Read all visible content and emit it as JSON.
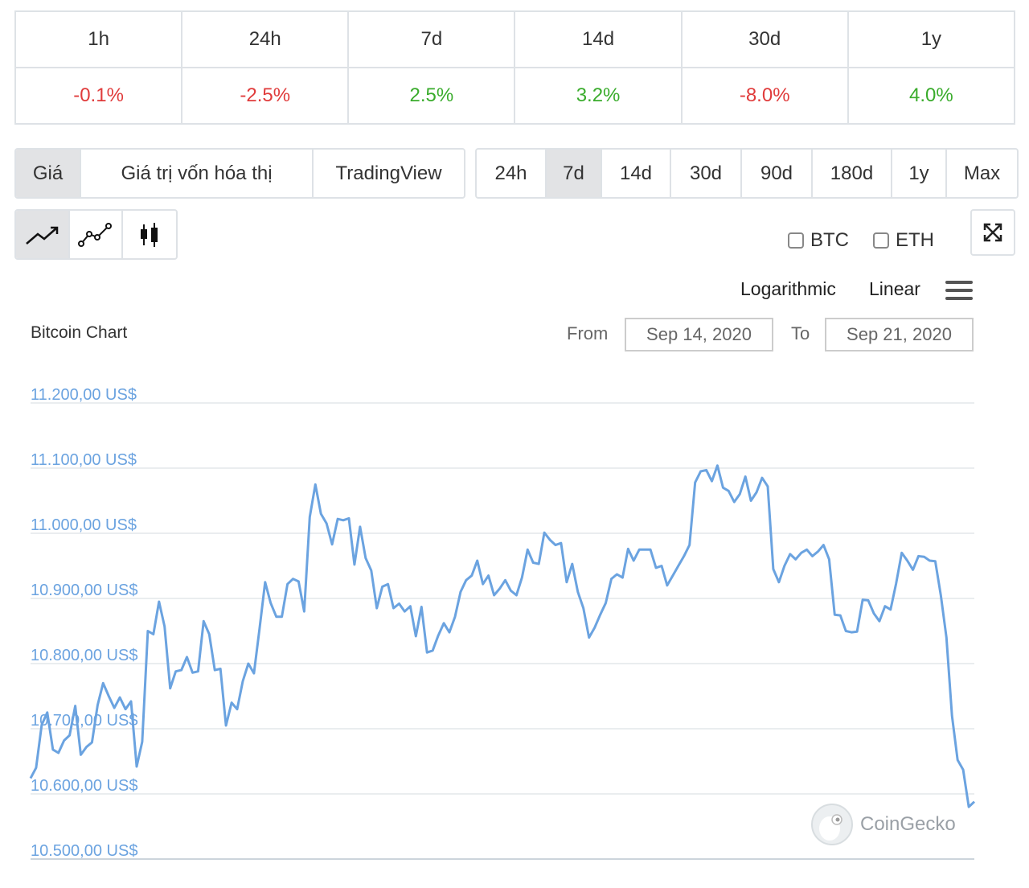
{
  "change_table": {
    "headers": [
      "1h",
      "24h",
      "7d",
      "14d",
      "30d",
      "1y"
    ],
    "values": [
      "-0.1%",
      "-2.5%",
      "2.5%",
      "3.2%",
      "-8.0%",
      "4.0%"
    ],
    "negative_color": "#e03b3b",
    "positive_color": "#3aac2c"
  },
  "view_tabs": [
    "Giá",
    "Giá trị vốn hóa thị",
    "TradingView"
  ],
  "range_tabs": [
    "24h",
    "7d",
    "14d",
    "30d",
    "90d",
    "180d",
    "1y",
    "Max"
  ],
  "active_view": "Giá",
  "active_range": "7d",
  "chart_types": [
    "line-chart-icon",
    "point-line-icon",
    "candlestick-icon"
  ],
  "compare": {
    "btc": "BTC",
    "eth": "ETH"
  },
  "scale": {
    "log": "Logarithmic",
    "linear": "Linear"
  },
  "range_picker": {
    "from_label": "From",
    "from_value": "Sep 14, 2020",
    "to_label": "To",
    "to_value": "Sep 21, 2020"
  },
  "watermark": "CoinGecko",
  "chart_data": {
    "type": "line",
    "title": "Bitcoin Chart",
    "series_color": "#6ba3e0",
    "ylim": [
      10500,
      11200
    ],
    "y_ticks": [
      "11.200,00 US$",
      "11.100,00 US$",
      "11.000,00 US$",
      "10.900,00 US$",
      "10.800,00 US$",
      "10.700,00 US$",
      "10.600,00 US$",
      "10.500,00 US$"
    ],
    "y_tick_values": [
      11200,
      11100,
      11000,
      10900,
      10800,
      10700,
      10600,
      10500
    ],
    "x_start": "Sep 14, 2020",
    "x_end": "Sep 21, 2020",
    "values": [
      10624,
      10640,
      10706,
      10725,
      10668,
      10663,
      10682,
      10690,
      10735,
      10660,
      10672,
      10679,
      10736,
      10770,
      10750,
      10732,
      10748,
      10730,
      10742,
      10642,
      10680,
      10850,
      10845,
      10895,
      10857,
      10762,
      10788,
      10790,
      10810,
      10786,
      10788,
      10865,
      10845,
      10790,
      10792,
      10705,
      10740,
      10730,
      10773,
      10800,
      10785,
      10853,
      10925,
      10893,
      10872,
      10872,
      10922,
      10930,
      10926,
      10880,
      11025,
      11075,
      11030,
      11015,
      10983,
      11022,
      11020,
      11023,
      10952,
      11010,
      10962,
      10943,
      10885,
      10918,
      10922,
      10885,
      10892,
      10880,
      10888,
      10842,
      10887,
      10817,
      10820,
      10843,
      10862,
      10848,
      10872,
      10910,
      10928,
      10935,
      10958,
      10922,
      10935,
      10905,
      10915,
      10928,
      10912,
      10905,
      10932,
      10975,
      10955,
      10953,
      11001,
      10990,
      10982,
      10985,
      10925,
      10953,
      10910,
      10885,
      10840,
      10855,
      10875,
      10893,
      10930,
      10937,
      10932,
      10976,
      10958,
      10975,
      10975,
      10975,
      10947,
      10950,
      10920,
      10935,
      10950,
      10965,
      10982,
      11078,
      11095,
      11097,
      11080,
      11104,
      11070,
      11065,
      11048,
      11060,
      11087,
      11050,
      11063,
      11085,
      11072,
      10945,
      10925,
      10950,
      10968,
      10960,
      10970,
      10975,
      10965,
      10972,
      10982,
      10960,
      10875,
      10874,
      10850,
      10848,
      10849,
      10898,
      10897,
      10877,
      10865,
      10888,
      10883,
      10923,
      10970,
      10958,
      10944,
      10965,
      10964,
      10958,
      10957,
      10905,
      10840,
      10720,
      10652,
      10637,
      10580,
      10588
    ]
  }
}
